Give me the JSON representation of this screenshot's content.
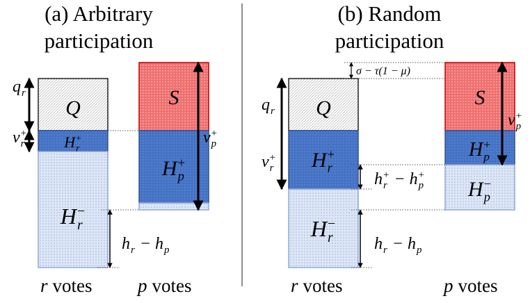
{
  "panels": [
    {
      "title": [
        "(a) Arbitrary",
        "participation"
      ],
      "labels": {
        "q_r": [
          {
            "main": "q",
            "sub": "r"
          }
        ],
        "v_r": [
          {
            "main": "v",
            "sub": "r",
            "sup": "+"
          }
        ],
        "Q": [
          {
            "main": "Q"
          }
        ],
        "H_r_plus": [
          {
            "main": "H",
            "sub": "r",
            "sup": "+"
          }
        ],
        "H_r_minus": [
          {
            "main": "H",
            "sub": "r",
            "sup": "−"
          }
        ],
        "S": [
          {
            "main": "S"
          }
        ],
        "H_p_plus": [
          {
            "main": "H",
            "sub": "p",
            "sup": "+"
          }
        ],
        "v_p": [
          {
            "main": "v",
            "sub": "p",
            "sup": "+"
          }
        ],
        "h_diff": [
          {
            "main": "h",
            "sub": "r"
          },
          {
            "main": "−"
          },
          {
            "main": "h",
            "sub": "p"
          }
        ]
      },
      "footers": [
        {
          "var": "r",
          "text": "votes"
        },
        {
          "var": "p",
          "text": "votes"
        }
      ]
    },
    {
      "title": [
        "(b) Random",
        "participation"
      ],
      "labels": {
        "gap": [
          {
            "main": "σ − τ(1 − μ)"
          }
        ],
        "q_r": [
          {
            "main": "q",
            "sub": "r"
          }
        ],
        "v_r": [
          {
            "main": "v",
            "sub": "r",
            "sup": "+"
          }
        ],
        "Q": [
          {
            "main": "Q"
          }
        ],
        "H_r_plus": [
          {
            "main": "H",
            "sub": "r",
            "sup": "+"
          }
        ],
        "H_r_minus": [
          {
            "main": "H",
            "sub": "r",
            "sup": "−"
          }
        ],
        "S": [
          {
            "main": "S"
          }
        ],
        "H_p_plus": [
          {
            "main": "H",
            "sub": "p",
            "sup": "+"
          }
        ],
        "H_p_minus": [
          {
            "main": "H",
            "sub": "p",
            "sup": "−"
          }
        ],
        "v_p": [
          {
            "main": "v",
            "sub": "p",
            "sup": "+"
          }
        ],
        "h_plus_diff": [
          {
            "main": "h",
            "sub": "r",
            "sup": "+"
          },
          {
            "main": "−"
          },
          {
            "main": "h",
            "sub": "p",
            "sup": "+"
          }
        ],
        "h_diff": [
          {
            "main": "h",
            "sub": "r"
          },
          {
            "main": "−"
          },
          {
            "main": "h",
            "sub": "p"
          }
        ]
      },
      "footers": [
        {
          "var": "r",
          "text": "votes"
        },
        {
          "var": "p",
          "text": "votes"
        }
      ]
    }
  ]
}
